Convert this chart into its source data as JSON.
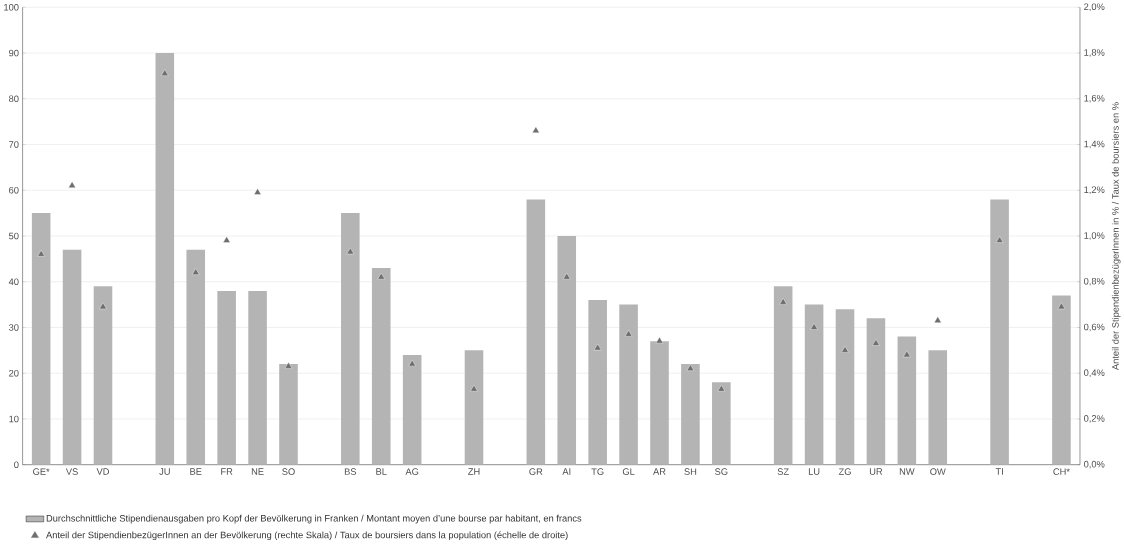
{
  "chart_data": {
    "type": "bar",
    "y2label": "Anteil der StipendienbezügerInnen in % / Taux de boursiers en %",
    "categories": [
      "GE*",
      "VS",
      "VD",
      null,
      "JU",
      "BE",
      "FR",
      "NE",
      "SO",
      null,
      "BS",
      "BL",
      "AG",
      null,
      "ZH",
      null,
      "GR",
      "AI",
      "TG",
      "GL",
      "AR",
      "SH",
      "SG",
      null,
      "SZ",
      "LU",
      "ZG",
      "UR",
      "NW",
      "OW",
      null,
      "TI",
      null,
      "CH*"
    ],
    "series": [
      {
        "name": "Durchschnittliche Stipendienausgaben pro Kopf der Bevölkerung in Franken / Montant moyen d’une bourse par habitant, en francs",
        "color": "#b4b4b4",
        "values": [
          55,
          47,
          39,
          null,
          90,
          47,
          38,
          38,
          22,
          null,
          55,
          43,
          24,
          null,
          25,
          null,
          58,
          50,
          36,
          35,
          27,
          22,
          18,
          null,
          39,
          35,
          34,
          32,
          28,
          25,
          null,
          58,
          null,
          37
        ]
      },
      {
        "name": "Anteil der StipendienbezügerInnen an der Bevölkerung (rechte Skala) / Taux de boursiers dans la population (échelle de droite)",
        "type": "scatter",
        "axis": "y2",
        "marker": "triangle",
        "color": "#6e6e6e",
        "values": [
          0.92,
          1.22,
          0.69,
          null,
          1.71,
          0.84,
          0.98,
          1.19,
          0.43,
          null,
          0.93,
          0.82,
          0.44,
          null,
          0.33,
          null,
          1.46,
          0.82,
          0.51,
          0.57,
          0.54,
          0.42,
          0.33,
          null,
          0.71,
          0.6,
          0.5,
          0.53,
          0.48,
          0.63,
          null,
          0.98,
          null,
          0.69
        ]
      }
    ],
    "ylim": [
      0,
      100
    ],
    "yticks": [
      0,
      10,
      20,
      30,
      40,
      50,
      60,
      70,
      80,
      90,
      100
    ],
    "y2lim": [
      0,
      2
    ],
    "y2ticks": [
      {
        "value": 0,
        "label": "0,0%"
      },
      {
        "value": 0.2,
        "label": "0,2%"
      },
      {
        "value": 0.4,
        "label": "0,4%"
      },
      {
        "value": 0.6,
        "label": "0,6%"
      },
      {
        "value": 0.8,
        "label": "0,8%"
      },
      {
        "value": 1,
        "label": "1,0%"
      },
      {
        "value": 1.2,
        "label": "1,2%"
      },
      {
        "value": 1.4,
        "label": "1,4%"
      },
      {
        "value": 1.6,
        "label": "1,6%"
      },
      {
        "value": 1.8,
        "label": "1,8%"
      },
      {
        "value": 2,
        "label": "2,0%"
      }
    ],
    "grid": "y",
    "legend": "bottom"
  }
}
